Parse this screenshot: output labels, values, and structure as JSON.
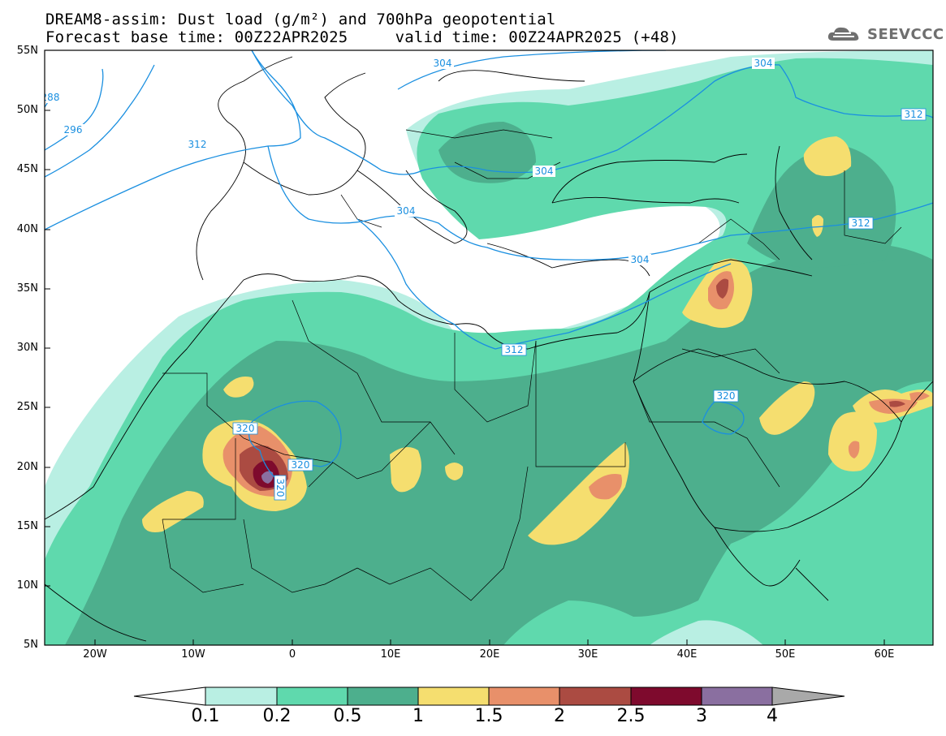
{
  "header": {
    "title_line1": "DREAM8-assim: Dust load (g/m²) and 700hPa geopotential",
    "title_line2": "Forecast base time: 00Z22APR2025     valid time: 00Z24APR2025 (+48)",
    "logo_text": "SEEVCCC"
  },
  "map": {
    "lat_ticks": [
      "55N",
      "50N",
      "45N",
      "40N",
      "35N",
      "30N",
      "25N",
      "20N",
      "15N",
      "10N",
      "5N"
    ],
    "lon_ticks": [
      "20W",
      "10W",
      "0",
      "10E",
      "20E",
      "30E",
      "40E",
      "50E",
      "60E"
    ],
    "contour_labels": [
      "304",
      "304",
      "304",
      "296",
      "288",
      "312",
      "304",
      "304",
      "312",
      "312",
      "312",
      "320",
      "320",
      "320",
      "320"
    ]
  },
  "colorbar": {
    "ticks": [
      "0.1",
      "0.2",
      "0.5",
      "1",
      "1.5",
      "2",
      "2.5",
      "3",
      "4"
    ],
    "colors": [
      "#b9efe3",
      "#5fd9ad",
      "#4daf8d",
      "#f5de6f",
      "#e8906a",
      "#ab4b42",
      "#7e0a2d",
      "#8a6fa0",
      "#a9a9a9"
    ]
  },
  "colors": {
    "c01": "#b9efe3",
    "c02": "#5fd9ad",
    "c05": "#4daf8d",
    "c1": "#f5de6f",
    "c15": "#e8906a",
    "c2": "#ab4b42",
    "c25": "#7e0a2d",
    "c3": "#8a6fa0",
    "contour": "#1a8fe0"
  }
}
